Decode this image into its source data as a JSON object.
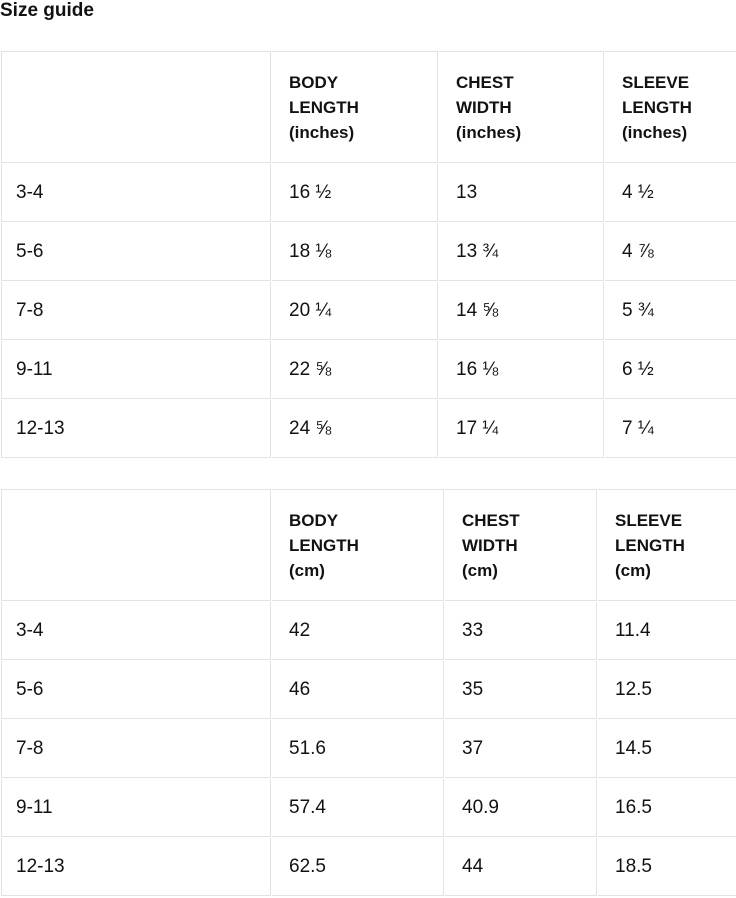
{
  "page": {
    "title": "Size guide"
  },
  "colors": {
    "text": "#121212",
    "border": "#e2e2e2",
    "background": "#ffffff"
  },
  "tables": [
    {
      "columns": [
        "",
        "BODY\nLENGTH\n(inches)",
        "CHEST\nWIDTH\n(inches)",
        "SLEEVE\nLENGTH\n(inches)"
      ],
      "rows": [
        [
          "3-4",
          "16 ½",
          "13",
          "4 ½"
        ],
        [
          "5-6",
          "18 ⅛",
          "13 ¾",
          "4 ⅞"
        ],
        [
          "7-8",
          "20 ¼",
          "14 ⅝",
          "5 ¾"
        ],
        [
          "9-11",
          "22 ⅝",
          "16 ⅛",
          "6 ½"
        ],
        [
          "12-13",
          "24 ⅝",
          "17 ¼",
          "7 ¼"
        ]
      ]
    },
    {
      "columns": [
        "",
        "BODY\nLENGTH\n(cm)",
        "CHEST\nWIDTH\n(cm)",
        "SLEEVE\nLENGTH\n(cm)"
      ],
      "rows": [
        [
          "3-4",
          "42",
          "33",
          "11.4"
        ],
        [
          "5-6",
          "46",
          "35",
          "12.5"
        ],
        [
          "7-8",
          "51.6",
          "37",
          "14.5"
        ],
        [
          "9-11",
          "57.4",
          "40.9",
          "16.5"
        ],
        [
          "12-13",
          "62.5",
          "44",
          "18.5"
        ]
      ]
    }
  ]
}
